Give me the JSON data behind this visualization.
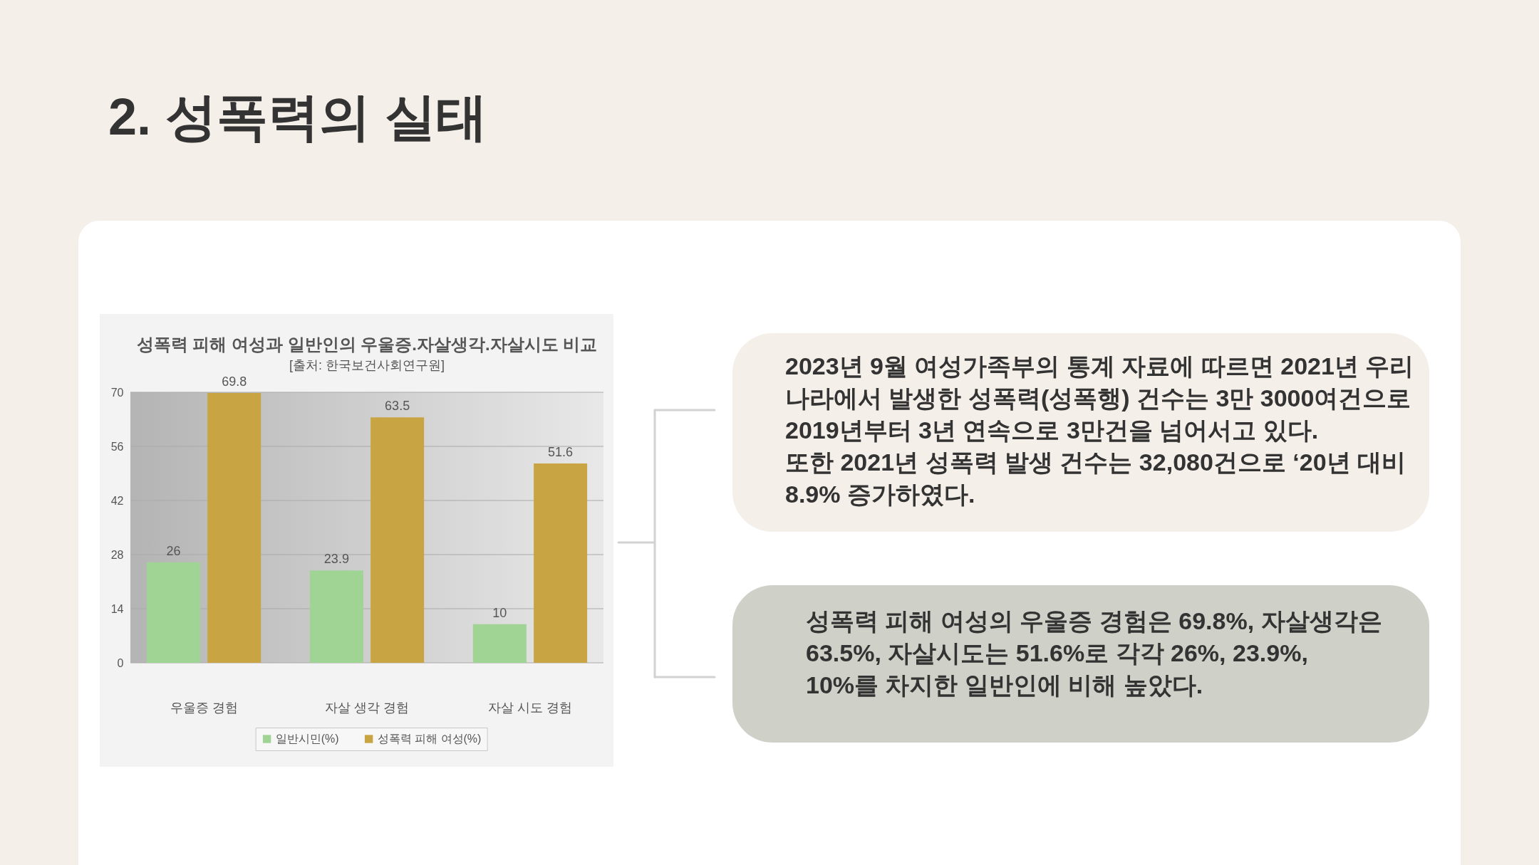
{
  "chart_data": {
    "type": "bar",
    "title": "성폭력 피해 여성과 일반인의 우울증.자살생각.자살시도 비교",
    "subtitle": "[출처: 한국보건사회연구원]",
    "categories": [
      "우울증 경험",
      "자살 생각 경험",
      "자살 시도 경험"
    ],
    "series": [
      {
        "name": "일반시민(%)",
        "color": "#9fd494",
        "values": [
          26,
          23.9,
          10
        ]
      },
      {
        "name": "성폭력 피해 여성(%)",
        "color": "#c8a443",
        "values": [
          69.8,
          63.5,
          51.6
        ]
      }
    ],
    "ylim": [
      0,
      70
    ],
    "yticks": [
      0,
      14,
      28,
      42,
      56,
      70
    ],
    "grid": "y",
    "legend": "bottom",
    "data_labels": true,
    "annotations": [
      "2. 성폭력의 실태",
      "2023년 9월 여성가족부의 통계 자료에 따르면 2021년 우리나라에서 발생한 성폭력(성폭행) 건수는 3만 3000여건으로 2019년부터 3년 연속으로 3만건을 넘어서고 있다.",
      "또한 2021년 성폭력 발생 건수는 32,080건으로 ‘20년 대비 8.9% 증가하였다.",
      "성폭력 피해 여성의 우울증 경험은 69.8%, 자살생각은 63.5%, 자살시도는 51.6%로 각각 26%, 23.9%, 10%를 차지한 일반인에 비해 높았다."
    ]
  }
}
